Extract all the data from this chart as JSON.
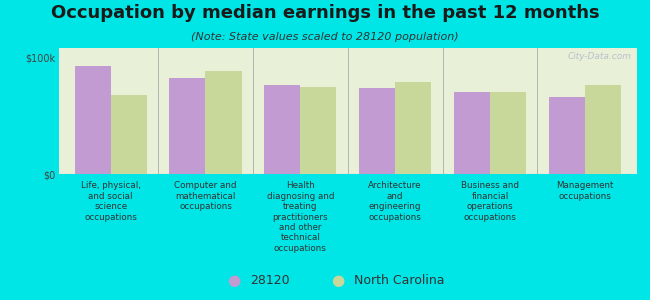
{
  "title": "Occupation by median earnings in the past 12 months",
  "subtitle": "(Note: State values scaled to 28120 population)",
  "background_color": "#00e5e5",
  "plot_bg_color": "#e8f0d8",
  "categories": [
    "Life, physical,\nand social\nscience\noccupations",
    "Computer and\nmathematical\noccupations",
    "Health\ndiagnosing and\ntreating\npractitioners\nand other\ntechnical\noccupations",
    "Architecture\nand\nengineering\noccupations",
    "Business and\nfinancial\noperations\noccupations",
    "Management\noccupations"
  ],
  "values_28120": [
    93000,
    82000,
    76000,
    74000,
    70000,
    66000
  ],
  "values_nc": [
    68000,
    88000,
    75000,
    79000,
    70000,
    76000
  ],
  "color_28120": "#c39bd3",
  "color_nc": "#c8d89a",
  "ylim": [
    0,
    108000
  ],
  "yticks": [
    0,
    100000
  ],
  "ytick_labels": [
    "$0",
    "$100k"
  ],
  "legend_28120": "28120",
  "legend_nc": "North Carolina",
  "watermark": "City-Data.com",
  "title_fontsize": 13,
  "subtitle_fontsize": 8,
  "tick_fontsize": 7,
  "legend_fontsize": 9
}
